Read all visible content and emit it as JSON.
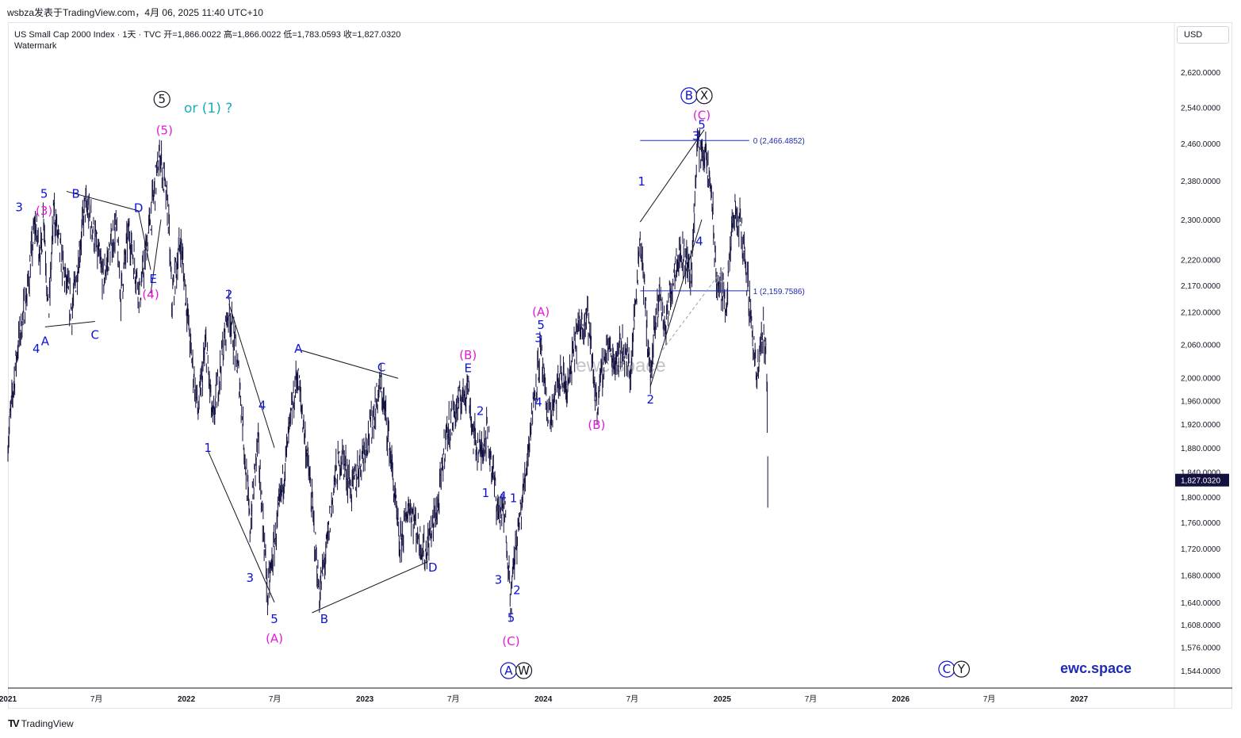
{
  "header": {
    "text": "wsbza发表于TradingView.com，4月 06, 2025 11:40 UTC+10"
  },
  "legend": {
    "line1": "US Small Cap 2000 Index · 1天 · TVC  开=1,866.0022  高=1,866.0022  低=1,783.0593  收=1,827.0320",
    "line2": "Watermark"
  },
  "currency": "USD",
  "footer": {
    "brand": "TradingView",
    "icon": "tradingview-logo-icon"
  },
  "watermark": {
    "center": "ewc.space",
    "corner": "ewc.space"
  },
  "colors": {
    "price": "#131140",
    "wave_blue": "#0d12d8",
    "wave_magenta": "#e01ad6",
    "wave_black": "#131722",
    "teal": "#15aebe",
    "fib_line": "#1f2bb3",
    "last_price_bg": "#131140"
  },
  "chart_data": {
    "type": "candlestick-daily",
    "symbol": "US Small Cap 2000 Index",
    "interval": "1天",
    "source": "TVC",
    "ohlc_last": {
      "open": 1866.0022,
      "high": 1866.0022,
      "low": 1783.0593,
      "close": 1827.032
    },
    "last_price_label": "1,827.0320",
    "y_ticks": [
      "2,620.0000",
      "2,540.0000",
      "2,460.0000",
      "2,380.0000",
      "2,300.0000",
      "2,220.0000",
      "2,170.0000",
      "2,120.0000",
      "2,060.0000",
      "2,000.0000",
      "1,960.0000",
      "1,920.0000",
      "1,880.0000",
      "1,840.0000",
      "1,800.0000",
      "1,760.0000",
      "1,720.0000",
      "1,680.0000",
      "1,640.0000",
      "1,608.0000",
      "1,576.0000",
      "1,544.0000"
    ],
    "x_ticks": [
      {
        "label": "2021",
        "bold": true,
        "date": "2021-01-01"
      },
      {
        "label": "7月",
        "bold": false,
        "date": "2021-07-01"
      },
      {
        "label": "2022",
        "bold": true,
        "date": "2022-01-01"
      },
      {
        "label": "7月",
        "bold": false,
        "date": "2022-07-01"
      },
      {
        "label": "2023",
        "bold": true,
        "date": "2023-01-01"
      },
      {
        "label": "7月",
        "bold": false,
        "date": "2023-07-01"
      },
      {
        "label": "2024",
        "bold": true,
        "date": "2024-01-01"
      },
      {
        "label": "7月",
        "bold": false,
        "date": "2024-07-01"
      },
      {
        "label": "2025",
        "bold": true,
        "date": "2025-01-01"
      },
      {
        "label": "7月",
        "bold": false,
        "date": "2025-07-01"
      },
      {
        "label": "2026",
        "bold": true,
        "date": "2026-01-01"
      },
      {
        "label": "7月",
        "bold": false,
        "date": "2026-07-01"
      },
      {
        "label": "2027",
        "bold": true,
        "date": "2027-01-01"
      }
    ],
    "price_path": [
      [
        "2021-01-01",
        1890
      ],
      [
        "2021-01-20",
        2050
      ],
      [
        "2021-02-10",
        2160
      ],
      [
        "2021-02-25",
        2290
      ],
      [
        "2021-03-10",
        2230
      ],
      [
        "2021-03-15",
        2320
      ],
      [
        "2021-03-25",
        2100
      ],
      [
        "2021-04-05",
        2320
      ],
      [
        "2021-04-20",
        2220
      ],
      [
        "2021-05-12",
        2120
      ],
      [
        "2021-06-08",
        2330
      ],
      [
        "2021-06-20",
        2300
      ],
      [
        "2021-07-15",
        2180
      ],
      [
        "2021-08-10",
        2290
      ],
      [
        "2021-08-20",
        2150
      ],
      [
        "2021-09-05",
        2280
      ],
      [
        "2021-09-28",
        2150
      ],
      [
        "2021-10-15",
        2270
      ],
      [
        "2021-11-08",
        2440
      ],
      [
        "2021-11-25",
        2310
      ],
      [
        "2021-12-02",
        2140
      ],
      [
        "2021-12-20",
        2260
      ],
      [
        "2022-01-10",
        2050
      ],
      [
        "2022-01-25",
        1940
      ],
      [
        "2022-02-10",
        2060
      ],
      [
        "2022-02-24",
        1920
      ],
      [
        "2022-03-29",
        2130
      ],
      [
        "2022-04-20",
        1990
      ],
      [
        "2022-05-11",
        1750
      ],
      [
        "2022-05-27",
        1890
      ],
      [
        "2022-06-16",
        1650
      ],
      [
        "2022-07-10",
        1780
      ],
      [
        "2022-08-16",
        2010
      ],
      [
        "2022-09-10",
        1830
      ],
      [
        "2022-09-30",
        1650
      ],
      [
        "2022-10-15",
        1720
      ],
      [
        "2022-11-01",
        1830
      ],
      [
        "2022-11-15",
        1870
      ],
      [
        "2022-12-05",
        1810
      ],
      [
        "2023-01-15",
        1920
      ],
      [
        "2023-02-02",
        1990
      ],
      [
        "2023-02-20",
        1890
      ],
      [
        "2023-03-13",
        1720
      ],
      [
        "2023-04-01",
        1790
      ],
      [
        "2023-05-04",
        1710
      ],
      [
        "2023-06-01",
        1790
      ],
      [
        "2023-06-15",
        1900
      ],
      [
        "2023-07-15",
        1960
      ],
      [
        "2023-07-31",
        1990
      ],
      [
        "2023-08-10",
        1900
      ],
      [
        "2023-08-25",
        1870
      ],
      [
        "2023-09-08",
        1910
      ],
      [
        "2023-09-30",
        1780
      ],
      [
        "2023-10-15",
        1770
      ],
      [
        "2023-10-27",
        1640
      ],
      [
        "2023-11-02",
        1700
      ],
      [
        "2023-11-20",
        1800
      ],
      [
        "2023-12-15",
        1980
      ],
      [
        "2023-12-27",
        2050
      ],
      [
        "2024-01-05",
        1960
      ],
      [
        "2024-01-17",
        1930
      ],
      [
        "2024-02-05",
        2000
      ],
      [
        "2024-02-20",
        1980
      ],
      [
        "2024-03-10",
        2080
      ],
      [
        "2024-03-31",
        2120
      ],
      [
        "2024-04-19",
        1950
      ],
      [
        "2024-05-10",
        2060
      ],
      [
        "2024-05-25",
        2030
      ],
      [
        "2024-06-10",
        2060
      ],
      [
        "2024-06-28",
        2010
      ],
      [
        "2024-07-17",
        2270
      ],
      [
        "2024-08-07",
        2000
      ],
      [
        "2024-08-25",
        2160
      ],
      [
        "2024-09-06",
        2090
      ],
      [
        "2024-09-30",
        2230
      ],
      [
        "2024-10-15",
        2230
      ],
      [
        "2024-10-30",
        2190
      ],
      [
        "2024-11-11",
        2460
      ],
      [
        "2024-11-25",
        2440
      ],
      [
        "2024-12-10",
        2360
      ],
      [
        "2024-12-19",
        2180
      ],
      [
        "2025-01-10",
        2140
      ],
      [
        "2025-01-24",
        2310
      ],
      [
        "2025-02-10",
        2280
      ],
      [
        "2025-02-28",
        2120
      ],
      [
        "2025-03-13",
        1990
      ],
      [
        "2025-03-25",
        2090
      ],
      [
        "2025-04-01",
        2050
      ],
      [
        "2025-04-03",
        1960
      ],
      [
        "2025-04-04",
        1827
      ]
    ],
    "fibonacci": [
      {
        "label": "0 (2,466.4852)",
        "value": 2466.4852
      },
      {
        "label": "1 (2,159.7586)",
        "value": 2159.7586
      }
    ]
  },
  "annotations": {
    "labels": [
      {
        "t": "5",
        "d": "2021-03-16",
        "v": 2345,
        "c": "blue"
      },
      {
        "t": "3",
        "d": "2021-01-24",
        "v": 2317,
        "c": "blue"
      },
      {
        "t": "(3)",
        "d": "2021-03-16",
        "v": 2310,
        "c": "magenta"
      },
      {
        "t": "4",
        "d": "2021-02-28",
        "v": 2045,
        "c": "blue"
      },
      {
        "t": "A",
        "d": "2021-03-18",
        "v": 2058,
        "c": "blue"
      },
      {
        "t": "C",
        "d": "2021-06-28",
        "v": 2070,
        "c": "blue"
      },
      {
        "t": "B",
        "d": "2021-05-20",
        "v": 2345,
        "c": "blue"
      },
      {
        "t": "D",
        "d": "2021-09-25",
        "v": 2315,
        "c": "blue"
      },
      {
        "t": "E",
        "d": "2021-10-25",
        "v": 2175,
        "c": "blue"
      },
      {
        "t": "(4)",
        "d": "2021-10-20",
        "v": 2145,
        "c": "magenta"
      },
      {
        "t": "(5)",
        "d": "2021-11-17",
        "v": 2480,
        "c": "magenta"
      },
      {
        "t": "2",
        "d": "2022-03-29",
        "v": 2145,
        "c": "blue"
      },
      {
        "t": "1",
        "d": "2022-02-14",
        "v": 1873,
        "c": "blue"
      },
      {
        "t": "4",
        "d": "2022-06-05",
        "v": 1945,
        "c": "blue"
      },
      {
        "t": "3",
        "d": "2022-05-11",
        "v": 1670,
        "c": "blue"
      },
      {
        "t": "5",
        "d": "2022-06-30",
        "v": 1610,
        "c": "blue"
      },
      {
        "t": "(A)",
        "d": "2022-06-30",
        "v": 1583,
        "c": "magenta"
      },
      {
        "t": "A",
        "d": "2022-08-18",
        "v": 2045,
        "c": "blue"
      },
      {
        "t": "B",
        "d": "2022-10-10",
        "v": 1610,
        "c": "blue"
      },
      {
        "t": "C",
        "d": "2023-02-04",
        "v": 2011,
        "c": "blue"
      },
      {
        "t": "D",
        "d": "2023-05-20",
        "v": 1685,
        "c": "blue"
      },
      {
        "t": "(B)",
        "d": "2023-07-31",
        "v": 2033,
        "c": "magenta"
      },
      {
        "t": "E",
        "d": "2023-07-31",
        "v": 2010,
        "c": "blue"
      },
      {
        "t": "2",
        "d": "2023-08-25",
        "v": 1935,
        "c": "blue"
      },
      {
        "t": "1",
        "d": "2023-09-05",
        "v": 1800,
        "c": "blue"
      },
      {
        "t": "4",
        "d": "2023-10-10",
        "v": 1795,
        "c": "blue"
      },
      {
        "t": "1",
        "d": "2023-11-01",
        "v": 1792,
        "c": "blue"
      },
      {
        "t": "3",
        "d": "2023-10-01",
        "v": 1667,
        "c": "blue"
      },
      {
        "t": "2",
        "d": "2023-11-08",
        "v": 1652,
        "c": "blue"
      },
      {
        "t": "5",
        "d": "2023-10-27",
        "v": 1612,
        "c": "blue"
      },
      {
        "t": "(C)",
        "d": "2023-10-27",
        "v": 1579,
        "c": "magenta"
      },
      {
        "t": "(A)",
        "d": "2023-12-27",
        "v": 2112,
        "c": "magenta"
      },
      {
        "t": "5",
        "d": "2023-12-27",
        "v": 2088,
        "c": "blue"
      },
      {
        "t": "3",
        "d": "2023-12-22",
        "v": 2064,
        "c": "blue"
      },
      {
        "t": "4",
        "d": "2023-12-22",
        "v": 1950,
        "c": "blue"
      },
      {
        "t": "(B)",
        "d": "2024-04-19",
        "v": 1912,
        "c": "magenta"
      },
      {
        "t": "1",
        "d": "2024-07-20",
        "v": 2370,
        "c": "blue"
      },
      {
        "t": "2",
        "d": "2024-08-07",
        "v": 1955,
        "c": "blue"
      },
      {
        "t": "4",
        "d": "2024-11-15",
        "v": 2248,
        "c": "blue"
      },
      {
        "t": "3",
        "d": "2024-11-08",
        "v": 2468,
        "c": "blue"
      },
      {
        "t": "5",
        "d": "2024-11-20",
        "v": 2492,
        "c": "blue"
      },
      {
        "t": "(C)",
        "d": "2024-11-20",
        "v": 2513,
        "c": "magenta"
      }
    ],
    "circled": [
      {
        "t": "5",
        "d": "2021-11-12",
        "v": 2558,
        "c": "black"
      },
      {
        "t": "B",
        "d": "2024-10-25",
        "v": 2566,
        "c": "blue"
      },
      {
        "t": "X",
        "d": "2024-11-25",
        "v": 2566,
        "c": "black"
      },
      {
        "t": "A",
        "d": "2023-10-22",
        "v": 1544,
        "c": "blue"
      },
      {
        "t": "W",
        "d": "2023-11-22",
        "v": 1544,
        "c": "black"
      },
      {
        "t": "C",
        "d": "2026-04-05",
        "v": 1546,
        "c": "blue"
      },
      {
        "t": "Y",
        "d": "2026-05-05",
        "v": 1546,
        "c": "black"
      }
    ],
    "alt_label": "or (1) ?",
    "trendlines": [
      {
        "a": [
          "2021-03-18",
          2092
        ],
        "b": [
          "2021-06-28",
          2102
        ]
      },
      {
        "a": [
          "2021-05-01",
          2358
        ],
        "b": [
          "2021-09-25",
          2318
        ]
      },
      {
        "a": [
          "2021-09-25",
          2318
        ],
        "b": [
          "2021-10-20",
          2200
        ]
      },
      {
        "a": [
          "2021-10-20",
          2155
        ],
        "b": [
          "2021-11-10",
          2300
        ]
      },
      {
        "a": [
          "2022-03-29",
          2135
        ],
        "b": [
          "2022-06-30",
          1880
        ]
      },
      {
        "a": [
          "2022-02-14",
          1875
        ],
        "b": [
          "2022-06-30",
          1640
        ]
      },
      {
        "a": [
          "2022-08-16",
          2051
        ],
        "b": [
          "2023-03-10",
          1999
        ]
      },
      {
        "a": [
          "2022-09-15",
          1625
        ],
        "b": [
          "2023-05-10",
          1700
        ]
      },
      {
        "a": [
          "2024-07-17",
          2295
        ],
        "b": [
          "2024-11-25",
          2490
        ]
      },
      {
        "a": [
          "2024-08-07",
          1985
        ],
        "b": [
          "2024-11-20",
          2300
        ]
      }
    ],
    "dashed": [
      {
        "a": [
          "2024-09-01",
          2050
        ],
        "b": [
          "2025-01-05",
          2205
        ]
      }
    ]
  }
}
